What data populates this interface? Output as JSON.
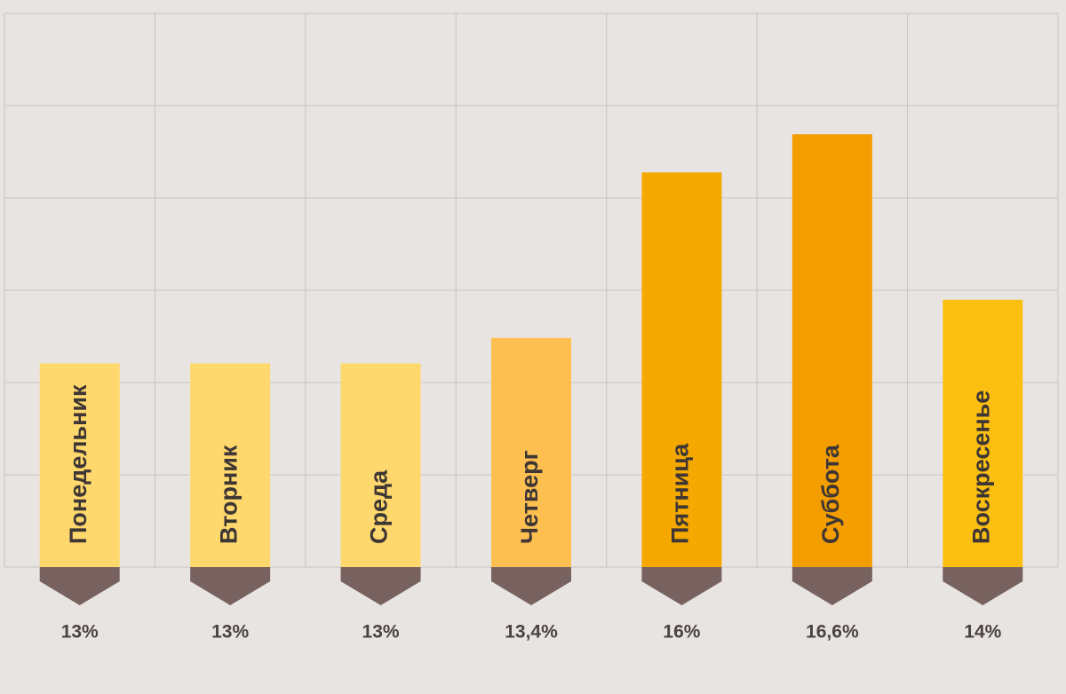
{
  "chart_data": {
    "type": "bar",
    "categories": [
      "Понедельник",
      "Вторник",
      "Среда",
      "Четверг",
      "Пятница",
      "Суббота",
      "Воскресенье"
    ],
    "values": [
      13,
      13,
      13,
      13.4,
      16,
      16.6,
      14
    ],
    "value_labels": [
      "13%",
      "13%",
      "13%",
      "13,4%",
      "16%",
      "16,6%",
      "14%"
    ],
    "colors": [
      "#fed86c",
      "#fed86c",
      "#fed86c",
      "#fdbf50",
      "#f5a900",
      "#f39d00",
      "#fbbf12"
    ],
    "ylim": [
      9.8,
      18.5
    ]
  }
}
